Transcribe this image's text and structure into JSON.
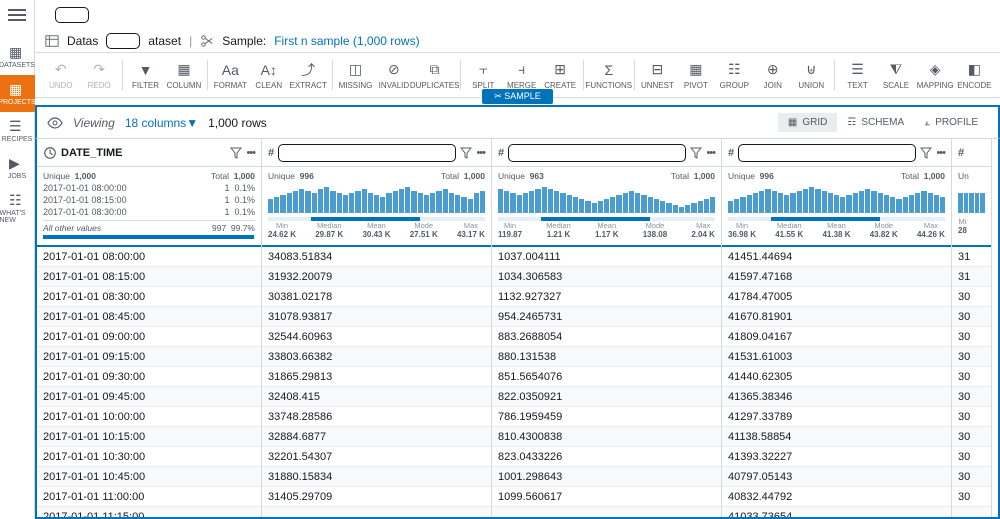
{
  "nav": {
    "items": [
      "DATASETS",
      "PROJECTS",
      "RECIPES",
      "JOBS",
      "WHAT'S NEW"
    ],
    "active": 1
  },
  "bc": {
    "ds": "Datas",
    "at": "ataset",
    "sample": "Sample:",
    "slink": "First n sample (1,000 rows)"
  },
  "tb": [
    [
      "UNDO",
      "REDO"
    ],
    [
      "FILTER",
      "COLUMN"
    ],
    [
      "FORMAT",
      "CLEAN",
      "EXTRACT"
    ],
    [
      "MISSING",
      "INVALID",
      "DUPLICATES"
    ],
    [
      "SPLIT",
      "MERGE",
      "CREATE"
    ],
    [
      "FUNCTIONS"
    ],
    [
      "UNNEST",
      "PIVOT",
      "GROUP",
      "JOIN",
      "UNION"
    ],
    [
      "TEXT",
      "SCALE",
      "MAPPING",
      "ENCODE"
    ]
  ],
  "tbicons": {
    "UNDO": "↶",
    "REDO": "↷",
    "FILTER": "▼",
    "COLUMN": "▦",
    "FORMAT": "Aa",
    "CLEAN": "A↕",
    "EXTRACT": "⤴",
    "MISSING": "◫",
    "INVALID": "⊘",
    "DUPLICATES": "⧉",
    "SPLIT": "⫟",
    "MERGE": "⫞",
    "CREATE": "⊞",
    "FUNCTIONS": "Σ",
    "UNNEST": "⊟",
    "PIVOT": "▦",
    "GROUP": "☷",
    "JOIN": "⊕",
    "UNION": "⊎",
    "TEXT": "☰",
    "SCALE": "⧨",
    "MAPPING": "◈",
    "ENCODE": "◧"
  },
  "sbadge": "✂ SAMPLE",
  "view": {
    "viewing": "Viewing",
    "cols": "18 columns",
    "rows": "1,000 rows",
    "tabs": [
      "GRID",
      "SCHEMA",
      "PROFILE"
    ],
    "active": 0
  },
  "columns": [
    {
      "type": "clock",
      "name": "DATE_TIME",
      "unique": "1,000",
      "total": "1,000",
      "topvals": [
        [
          "2017-01-01 08:00:00",
          "1",
          "0.1%"
        ],
        [
          "2017-01-01 08:15:00",
          "1",
          "0.1%"
        ],
        [
          "2017-01-01 08:30:00",
          "1",
          "0.1%"
        ]
      ],
      "other": [
        "All other values",
        "997",
        "99.7%"
      ]
    },
    {
      "type": "#",
      "name": "",
      "unique": "996",
      "total": "1,000",
      "bars": [
        14,
        16,
        18,
        20,
        22,
        24,
        22,
        20,
        24,
        26,
        22,
        20,
        18,
        20,
        22,
        24,
        20,
        18,
        16,
        20,
        22,
        24,
        26,
        22,
        20,
        18,
        20,
        22,
        24,
        20,
        18,
        16,
        14,
        20,
        22
      ],
      "stats": {
        "Min": "24.62 K",
        "Median": "29.87 K",
        "Mean": "30.43 K",
        "Mode": "27.51 K",
        "Max": "43.17 K"
      }
    },
    {
      "type": "#",
      "name": "",
      "unique": "963",
      "total": "1,000",
      "bars": [
        24,
        22,
        20,
        18,
        20,
        22,
        24,
        26,
        24,
        22,
        20,
        18,
        16,
        14,
        12,
        10,
        12,
        14,
        16,
        18,
        20,
        22,
        20,
        18,
        16,
        14,
        12,
        10,
        8,
        6,
        8,
        10,
        12,
        14,
        16
      ],
      "stats": {
        "Min": "119.87",
        "Median": "1.21 K",
        "Mean": "1.17 K",
        "Mode": "138.08",
        "Max": "2.04 K"
      }
    },
    {
      "type": "#",
      "name": "",
      "unique": "996",
      "total": "1,000",
      "bars": [
        12,
        14,
        16,
        18,
        20,
        22,
        24,
        22,
        20,
        18,
        20,
        22,
        24,
        26,
        24,
        22,
        20,
        18,
        16,
        18,
        20,
        22,
        24,
        22,
        20,
        18,
        16,
        14,
        16,
        18,
        20,
        22,
        20,
        18,
        16
      ],
      "stats": {
        "Min": "36.98 K",
        "Median": "41.55 K",
        "Mean": "41.38 K",
        "Mode": "43.82 K",
        "Max": "44.26 K"
      }
    }
  ],
  "rows": [
    [
      "2017-01-01 08:00:00",
      "34083.51834",
      "1037.004111",
      "41451.44694",
      "31"
    ],
    [
      "2017-01-01 08:15:00",
      "31932.20079",
      "1034.306583",
      "41597.47168",
      "31"
    ],
    [
      "2017-01-01 08:30:00",
      "30381.02178",
      "1132.927327",
      "41784.47005",
      "30"
    ],
    [
      "2017-01-01 08:45:00",
      "31078.93817",
      "954.2465731",
      "41670.81901",
      "30"
    ],
    [
      "2017-01-01 09:00:00",
      "32544.60963",
      "883.2688054",
      "41809.04167",
      "30"
    ],
    [
      "2017-01-01 09:15:00",
      "33803.66382",
      "880.131538",
      "41531.61003",
      "30"
    ],
    [
      "2017-01-01 09:30:00",
      "31865.29813",
      "851.5654076",
      "41440.62305",
      "30"
    ],
    [
      "2017-01-01 09:45:00",
      "32408.415",
      "822.0350921",
      "41365.38346",
      "30"
    ],
    [
      "2017-01-01 10:00:00",
      "33748.28586",
      "786.1959459",
      "41297.33789",
      "30"
    ],
    [
      "2017-01-01 10:15:00",
      "32884.6877",
      "810.4300838",
      "41138.58854",
      "30"
    ],
    [
      "2017-01-01 10:30:00",
      "32201.54307",
      "823.0433226",
      "41393.32227",
      "30"
    ],
    [
      "2017-01-01 10:45:00",
      "31880.15834",
      "1001.298643",
      "40797.05143",
      "30"
    ],
    [
      "2017-01-01 11:00:00",
      "31405.29709",
      "1099.560617",
      "40832.44792",
      "30"
    ],
    [
      "2017-01-01 11:15:00",
      "",
      "",
      "41033.73654",
      ""
    ]
  ],
  "lastcol": {
    "unique": "Un",
    "total": "1,",
    "min": "28"
  }
}
